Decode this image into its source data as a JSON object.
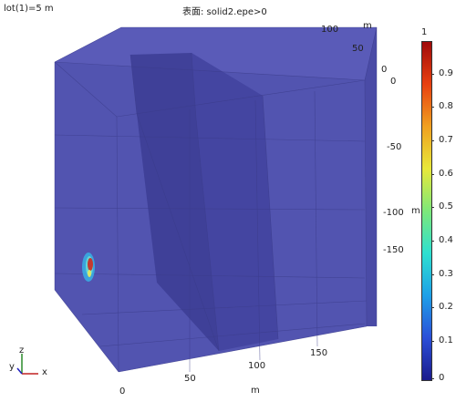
{
  "header": {
    "title_left": "lot(1)=5 m",
    "title_center": "表面: solid2.epe>0"
  },
  "axes": {
    "y_ticks": [
      "100",
      "50",
      "0"
    ],
    "y_label": "m",
    "z_ticks": [
      "0",
      "-50",
      "-100",
      "-150"
    ],
    "z_label": "m",
    "x_ticks": [
      "0",
      "50",
      "100",
      "150"
    ],
    "x_label": "m"
  },
  "triad": {
    "z": "z",
    "y": "y",
    "x": "x"
  },
  "colorbar": {
    "max_label": "1",
    "ticks": [
      "0.9",
      "0.8",
      "0.7",
      "0.6",
      "0.5",
      "0.4",
      "0.3",
      "0.2",
      "0.1",
      "0"
    ],
    "colors": [
      "#1a1a8c",
      "#2b4fd8",
      "#1ea0e8",
      "#2ee0d0",
      "#7de87a",
      "#e8e83a",
      "#f0a020",
      "#e84010",
      "#a00a0a"
    ]
  }
}
